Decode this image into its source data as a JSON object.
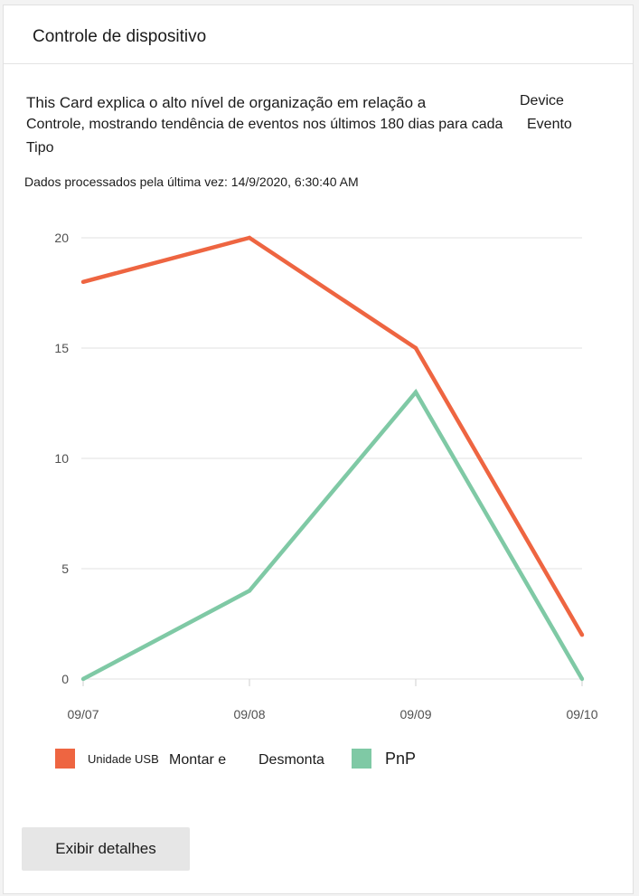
{
  "card": {
    "title": "Controle de dispositivo",
    "description": {
      "line1": "This Card explica o alto nível de organização em relação a",
      "line1_right": "Device",
      "line2": "Controle, mostrando tendência de eventos nos últimos 180 dias para cada",
      "line2_right": "Evento",
      "line3": "Tipo"
    },
    "processed_text": "Dados processados pela última vez: 14/9/2020, 6:30:40 AM",
    "details_button": "Exibir detalhes"
  },
  "legend": [
    {
      "id": "usb",
      "parts": [
        "Unidade USB",
        "Montar e",
        "Desmonta"
      ],
      "color": "#ee6541"
    },
    {
      "id": "pnp",
      "parts": [
        "PnP"
      ],
      "color": "#7fc9a5"
    }
  ],
  "chart_data": {
    "type": "line",
    "x": [
      "09/07",
      "09/08",
      "09/09",
      "09/10"
    ],
    "series": [
      {
        "values": [
          18,
          20,
          15,
          2
        ],
        "color": "#ee6541"
      },
      {
        "name": "PnP",
        "values": [
          0,
          4,
          13,
          0
        ],
        "color": "#7fc9a5"
      }
    ],
    "yticks": [
      "0",
      "5",
      "10",
      "15",
      "20"
    ],
    "ylim": [
      0,
      20
    ],
    "grid": true
  }
}
